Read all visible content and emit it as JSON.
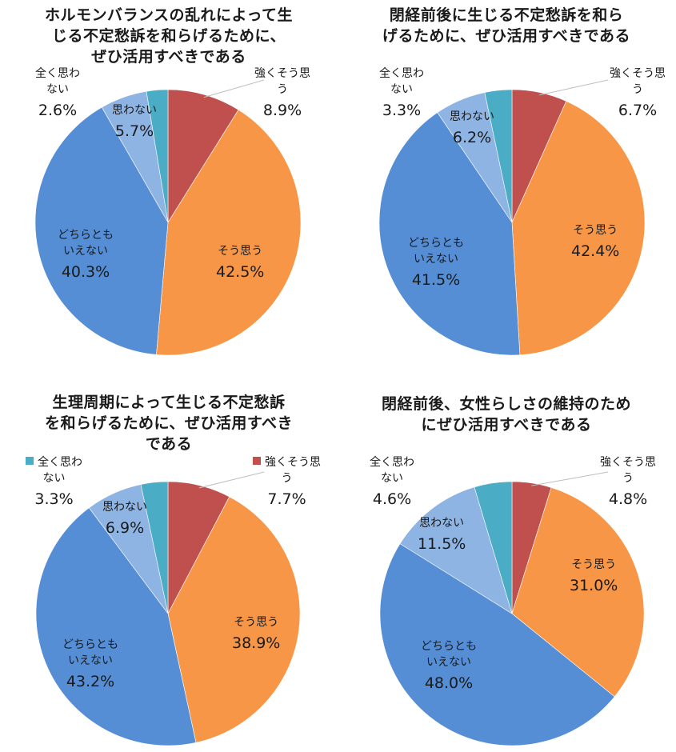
{
  "colors": {
    "strongly_agree": "#C0504D",
    "agree": "#F79646",
    "neutral": "#558ED5",
    "disagree": "#8EB4E3",
    "strongly_disagree": "#4BACC6"
  },
  "categories": [
    "強くそう思う",
    "そう思う",
    "どちらともいえない",
    "思わない",
    "全く思わない"
  ],
  "charts": [
    {
      "title_lines": [
        "ホルモンバランスの乱れによって生",
        "じる不定愁訴を和らげるために、",
        "ぜひ活用すべきである"
      ],
      "labels": {
        "strongly_agree": {
          "l1": "強くそう思",
          "l2": "う",
          "pct": "8.9%"
        },
        "agree": {
          "l1": "そう思う",
          "pct": "42.5%"
        },
        "neutral": {
          "l1": "どちらとも",
          "l2": "いえない",
          "pct": "40.3%"
        },
        "disagree": {
          "l1": "思わない",
          "pct": "5.7%"
        },
        "strongly_disagree": {
          "l1": "全く思わ",
          "l2": "ない",
          "pct": "2.6%"
        }
      }
    },
    {
      "title_lines": [
        "閉経前後に生じる不定愁訴を和ら",
        "げるために、ぜひ活用すべきである"
      ],
      "labels": {
        "strongly_agree": {
          "l1": "強くそう思",
          "l2": "う",
          "pct": "6.7%"
        },
        "agree": {
          "l1": "そう思う",
          "pct": "42.4%"
        },
        "neutral": {
          "l1": "どちらとも",
          "l2": "いえない",
          "pct": "41.5%"
        },
        "disagree": {
          "l1": "思わない",
          "pct": "6.2%"
        },
        "strongly_disagree": {
          "l1": "全く思わ",
          "l2": "ない",
          "pct": "3.3%"
        }
      }
    },
    {
      "title_lines": [
        "生理周期によって生じる不定愁訴",
        "を和らげるために、ぜひ活用すべき",
        "である"
      ],
      "labels": {
        "strongly_agree": {
          "l1": "強くそう思",
          "l2": "う",
          "pct": "7.7%"
        },
        "agree": {
          "l1": "そう思う",
          "pct": "38.9%"
        },
        "neutral": {
          "l1": "どちらとも",
          "l2": "いえない",
          "pct": "43.2%"
        },
        "disagree": {
          "l1": "思わない",
          "pct": "6.9%"
        },
        "strongly_disagree": {
          "l1": "全く思わ",
          "l2": "ない",
          "pct": "3.3%"
        }
      }
    },
    {
      "title_lines": [
        "閉経前後、女性らしさの維持のため",
        "にぜひ活用すべきである"
      ],
      "labels": {
        "strongly_agree": {
          "l1": "強くそう思",
          "l2": "う",
          "pct": "4.8%"
        },
        "agree": {
          "l1": "そう思う",
          "pct": "31.0%"
        },
        "neutral": {
          "l1": "どちらとも",
          "l2": "いえない",
          "pct": "48.0%"
        },
        "disagree": {
          "l1": "思わない",
          "pct": "11.5%"
        },
        "strongly_disagree": {
          "l1": "全く思わ",
          "l2": "ない",
          "pct": "4.6%"
        }
      }
    }
  ],
  "chart_data": [
    {
      "type": "pie",
      "title": "ホルモンバランスの乱れによって生じる不定愁訴を和らげるために、ぜひ活用すべきである",
      "categories": [
        "強くそう思う",
        "そう思う",
        "どちらともいえない",
        "思わない",
        "全く思わない"
      ],
      "values": [
        8.9,
        42.5,
        40.3,
        5.7,
        2.6
      ],
      "unit": "%"
    },
    {
      "type": "pie",
      "title": "閉経前後に生じる不定愁訴を和らげるために、ぜひ活用すべきである",
      "categories": [
        "強くそう思う",
        "そう思う",
        "どちらともいえない",
        "思わない",
        "全く思わない"
      ],
      "values": [
        6.7,
        42.4,
        41.5,
        6.2,
        3.3
      ],
      "unit": "%"
    },
    {
      "type": "pie",
      "title": "生理周期によって生じる不定愁訴を和らげるために、ぜひ活用すべきである",
      "categories": [
        "強くそう思う",
        "そう思う",
        "どちらともいえない",
        "思わない",
        "全く思わない"
      ],
      "values": [
        7.7,
        38.9,
        43.2,
        6.9,
        3.3
      ],
      "unit": "%"
    },
    {
      "type": "pie",
      "title": "閉経前後、女性らしさの維持のためにぜひ活用すべきである",
      "categories": [
        "強くそう思う",
        "そう思う",
        "どちらともいえない",
        "思わない",
        "全く思わない"
      ],
      "values": [
        4.8,
        31.0,
        48.0,
        11.5,
        4.6
      ],
      "unit": "%"
    }
  ]
}
